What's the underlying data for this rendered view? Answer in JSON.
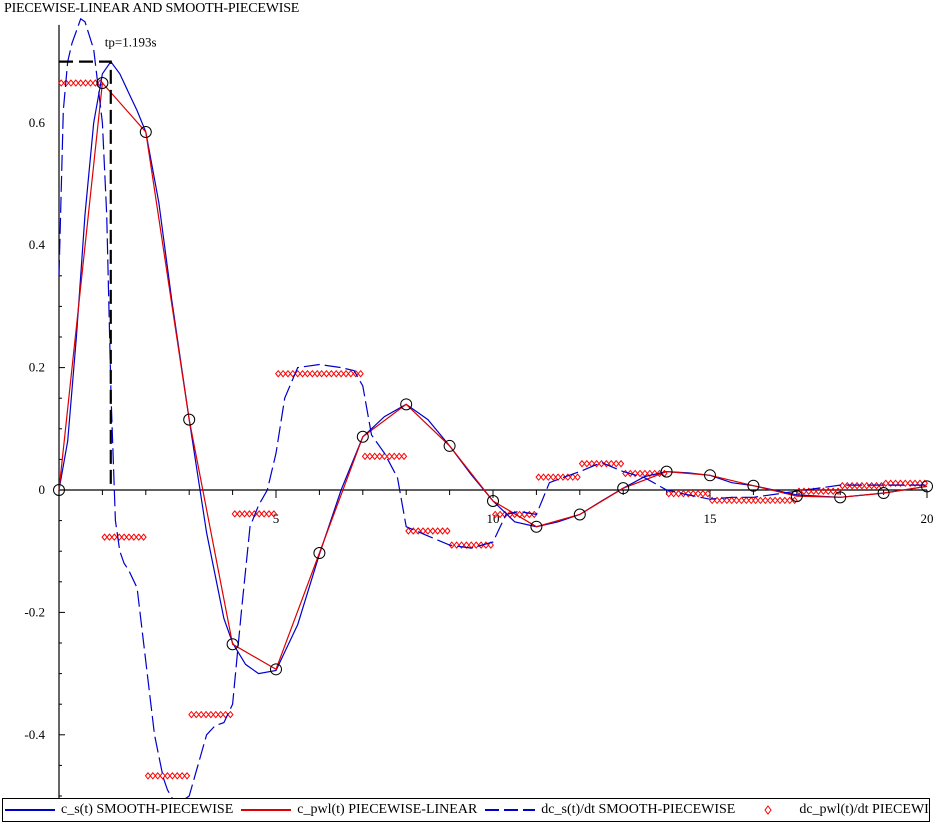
{
  "title": "PIECEWISE-LINEAR AND SMOOTH-PIECEWISE",
  "chart_data": {
    "type": "line",
    "title": "PIECEWISE-LINEAR AND SMOOTH-PIECEWISE",
    "xlim": [
      0,
      20
    ],
    "ylim": [
      -0.51,
      0.76
    ],
    "x_ticks": [
      5,
      10,
      15,
      20
    ],
    "y_ticks": [
      -0.4,
      -0.2,
      0,
      0.2,
      0.4,
      0.6
    ],
    "x_tick_labels": [
      "5",
      "10",
      "15",
      "20"
    ],
    "y_tick_labels": [
      "-0.4",
      "-0.2",
      "0",
      "0.2",
      "0.4",
      "0.6"
    ],
    "grid": false,
    "legend_position": "bottom",
    "annotation": {
      "text": "tp=1.193s",
      "x": 1.193,
      "y": 0.7
    },
    "markers": {
      "name": "sample points",
      "x": [
        0,
        1,
        2,
        3,
        4,
        5,
        6,
        7,
        8,
        9,
        10,
        11,
        12,
        13,
        14,
        15,
        16,
        17,
        18,
        19,
        20
      ],
      "y": [
        0,
        0.665,
        0.585,
        0.115,
        -0.252,
        -0.293,
        -0.103,
        0.087,
        0.14,
        0.072,
        -0.018,
        -0.06,
        -0.04,
        0.003,
        0.03,
        0.024,
        0.007,
        -0.01,
        -0.012,
        -0.005,
        0.006
      ]
    },
    "series": [
      {
        "name": "c_s(t) SMOOTH-PIECEWISE",
        "style": "solid",
        "color": "#0000cc",
        "x": [
          0,
          0.2,
          0.4,
          0.6,
          0.8,
          1.0,
          1.193,
          1.4,
          1.6,
          1.8,
          2.0,
          2.3,
          2.6,
          3.0,
          3.4,
          3.8,
          4.0,
          4.3,
          4.6,
          5.0,
          5.5,
          6.0,
          6.5,
          7.0,
          7.5,
          8.0,
          8.5,
          9.0,
          9.5,
          10.0,
          10.5,
          11.0,
          11.5,
          12.0,
          12.5,
          13.0,
          13.5,
          14.0,
          14.5,
          15.0,
          15.5,
          16.0,
          17.0,
          18.0,
          19.0,
          20.0
        ],
        "y": [
          0,
          0.08,
          0.25,
          0.45,
          0.6,
          0.68,
          0.7,
          0.68,
          0.65,
          0.62,
          0.585,
          0.47,
          0.31,
          0.115,
          -0.07,
          -0.21,
          -0.25,
          -0.285,
          -0.3,
          -0.295,
          -0.22,
          -0.105,
          0.0,
          0.087,
          0.12,
          0.14,
          0.115,
          0.072,
          0.025,
          -0.018,
          -0.052,
          -0.06,
          -0.052,
          -0.04,
          -0.018,
          0.003,
          0.022,
          0.03,
          0.028,
          0.024,
          0.012,
          0.007,
          -0.008,
          -0.012,
          -0.005,
          0.006
        ]
      },
      {
        "name": "c_pwl(t) PIECEWISE-LINEAR",
        "style": "solid",
        "color": "#dd0000",
        "x": [
          0,
          1,
          2,
          3,
          4,
          5,
          6,
          7,
          8,
          9,
          10,
          11,
          12,
          13,
          14,
          15,
          16,
          17,
          18,
          19,
          20
        ],
        "y": [
          0,
          0.665,
          0.585,
          0.115,
          -0.252,
          -0.293,
          -0.103,
          0.087,
          0.14,
          0.072,
          -0.018,
          -0.06,
          -0.04,
          0.003,
          0.03,
          0.024,
          0.007,
          -0.01,
          -0.012,
          -0.005,
          0.006
        ]
      },
      {
        "name": "dc_s(t)/dt SMOOTH-PIECEWISE",
        "style": "dashed",
        "color": "#0000cc",
        "x": [
          0,
          0.1,
          0.2,
          0.3,
          0.4,
          0.5,
          0.6,
          0.8,
          1.0,
          1.1,
          1.2,
          1.3,
          1.4,
          1.5,
          1.6,
          1.8,
          2.0,
          2.2,
          2.4,
          2.5,
          2.7,
          3.0,
          3.2,
          3.4,
          3.6,
          3.8,
          4.0,
          4.2,
          4.4,
          4.6,
          4.8,
          5.0,
          5.2,
          5.5,
          6.0,
          6.5,
          6.8,
          7.0,
          7.2,
          7.5,
          7.8,
          8.0,
          8.5,
          9.0,
          9.5,
          10.0,
          10.3,
          10.6,
          11.0,
          11.3,
          11.6,
          12.0,
          12.5,
          13.0,
          13.5,
          14.0,
          14.5,
          15.0,
          15.5,
          16.0,
          17.0,
          18.0,
          19.0,
          20.0
        ],
        "y": [
          0.35,
          0.62,
          0.7,
          0.73,
          0.75,
          0.77,
          0.765,
          0.72,
          0.6,
          0.45,
          0.15,
          -0.05,
          -0.1,
          -0.12,
          -0.13,
          -0.16,
          -0.28,
          -0.4,
          -0.47,
          -0.49,
          -0.515,
          -0.5,
          -0.45,
          -0.4,
          -0.385,
          -0.38,
          -0.35,
          -0.2,
          -0.06,
          -0.025,
          0.0,
          0.06,
          0.15,
          0.2,
          0.205,
          0.2,
          0.195,
          0.17,
          0.09,
          0.06,
          0.02,
          -0.06,
          -0.075,
          -0.09,
          -0.095,
          -0.085,
          -0.04,
          -0.035,
          -0.04,
          0.012,
          0.02,
          0.03,
          0.045,
          0.03,
          0.02,
          0.0,
          -0.008,
          -0.015,
          -0.012,
          -0.012,
          -0.002,
          0.008,
          0.008,
          0.008
        ]
      },
      {
        "name": "dc_pwl(t)/dt PIECEWISE-LINEAR",
        "style": "markers",
        "color": "#ff0000",
        "steps": [
          {
            "x0": 0,
            "x1": 1,
            "y": 0.665
          },
          {
            "x0": 1,
            "x1": 2,
            "y": -0.077
          },
          {
            "x0": 2,
            "x1": 3,
            "y": -0.467
          },
          {
            "x0": 3,
            "x1": 4,
            "y": -0.367
          },
          {
            "x0": 4,
            "x1": 5,
            "y": -0.039
          },
          {
            "x0": 5,
            "x1": 6,
            "y": 0.19
          },
          {
            "x0": 6,
            "x1": 7,
            "y": 0.19
          },
          {
            "x0": 7,
            "x1": 8,
            "y": 0.055
          },
          {
            "x0": 8,
            "x1": 9,
            "y": -0.067
          },
          {
            "x0": 9,
            "x1": 10,
            "y": -0.09
          },
          {
            "x0": 10,
            "x1": 11,
            "y": -0.04
          },
          {
            "x0": 11,
            "x1": 12,
            "y": 0.021
          },
          {
            "x0": 12,
            "x1": 13,
            "y": 0.043
          },
          {
            "x0": 13,
            "x1": 14,
            "y": 0.027
          },
          {
            "x0": 14,
            "x1": 15,
            "y": -0.006
          },
          {
            "x0": 15,
            "x1": 16,
            "y": -0.017
          },
          {
            "x0": 16,
            "x1": 17,
            "y": -0.017
          },
          {
            "x0": 17,
            "x1": 18,
            "y": -0.002
          },
          {
            "x0": 18,
            "x1": 19,
            "y": 0.007
          },
          {
            "x0": 19,
            "x1": 20,
            "y": 0.011
          }
        ]
      }
    ]
  }
}
